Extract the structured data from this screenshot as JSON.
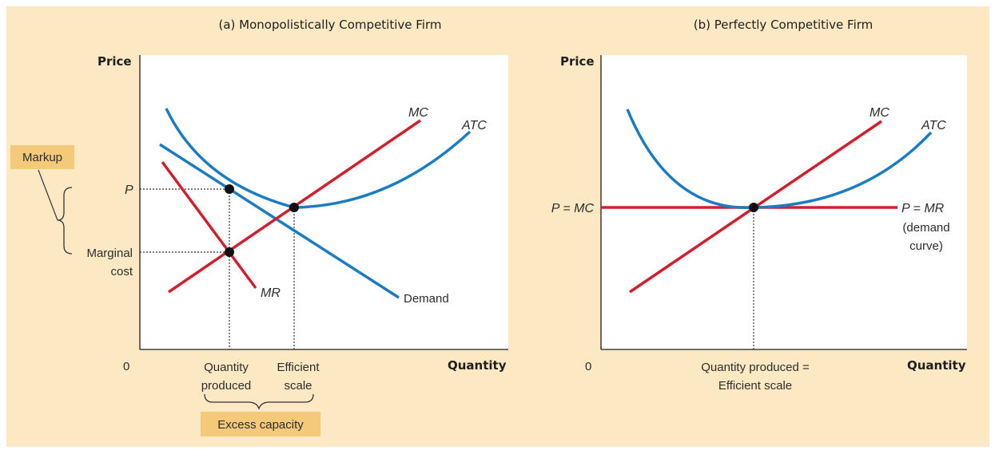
{
  "colors": {
    "background": "#fce8c3",
    "plot_area": "#ffffff",
    "cost_curves": "#1c7cc2",
    "revenue_curves": "#d0202f",
    "label_box": "#f5c97a"
  },
  "panel_a": {
    "title": "(a) Monopolistically Competitive Firm",
    "y_axis_title": "Price",
    "x_axis_title": "Quantity",
    "origin_label": "0",
    "mc_label": "MC",
    "atc_label": "ATC",
    "mr_label": "MR",
    "demand_label": "Demand",
    "p_label": "P",
    "marginal_cost_label_1": "Marginal",
    "marginal_cost_label_2": "cost",
    "markup_label": "Markup",
    "qty_produced_label_1": "Quantity",
    "qty_produced_label_2": "produced",
    "efficient_scale_label_1": "Efficient",
    "efficient_scale_label_2": "scale",
    "excess_capacity_label": "Excess capacity"
  },
  "panel_b": {
    "title": "(b) Perfectly Competitive Firm",
    "y_axis_title": "Price",
    "x_axis_title": "Quantity",
    "origin_label": "0",
    "mc_label": "MC",
    "atc_label": "ATC",
    "p_mc_label": "P = MC",
    "p_mr_label": "P = MR",
    "demand_curve_label_1": "(demand",
    "demand_curve_label_2": "curve)",
    "qty_label_1": "Quantity produced =",
    "qty_label_2": "Efficient scale"
  }
}
